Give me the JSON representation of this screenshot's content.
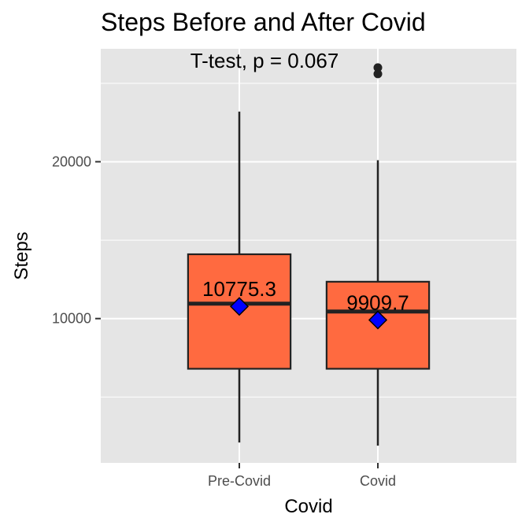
{
  "chart_data": {
    "type": "box",
    "title": "Steps Before and After Covid",
    "xlabel": "Covid",
    "ylabel": "Steps",
    "annotation": "T-test, p = 0.067",
    "categories": [
      "Pre-Covid",
      "Covid"
    ],
    "y_ticks": [
      10000,
      20000
    ],
    "y_tick_labels": [
      "10000",
      "20000"
    ],
    "ylim": [
      800,
      27200
    ],
    "grid": true,
    "boxes": [
      {
        "category": "Pre-Covid",
        "whisker_low": 2100,
        "q1": 6800,
        "median": 10950,
        "q3": 14100,
        "whisker_high": 23200,
        "mean": 10775.3,
        "mean_label": "10775.3",
        "outliers": []
      },
      {
        "category": "Covid",
        "whisker_low": 1900,
        "q1": 6800,
        "median": 10450,
        "q3": 12350,
        "whisker_high": 20100,
        "mean": 9909.7,
        "mean_label": "9909.7",
        "outliers": [
          25600,
          26000
        ]
      }
    ],
    "colors": {
      "panel": "#e5e5e5",
      "grid": "#ffffff",
      "box_fill": "#ff6a40",
      "box_stroke": "#222222",
      "mean_marker": "#0000ff",
      "outlier": "#222222",
      "tick_mark": "#333333"
    },
    "mean_marker_shape": "diamond"
  }
}
